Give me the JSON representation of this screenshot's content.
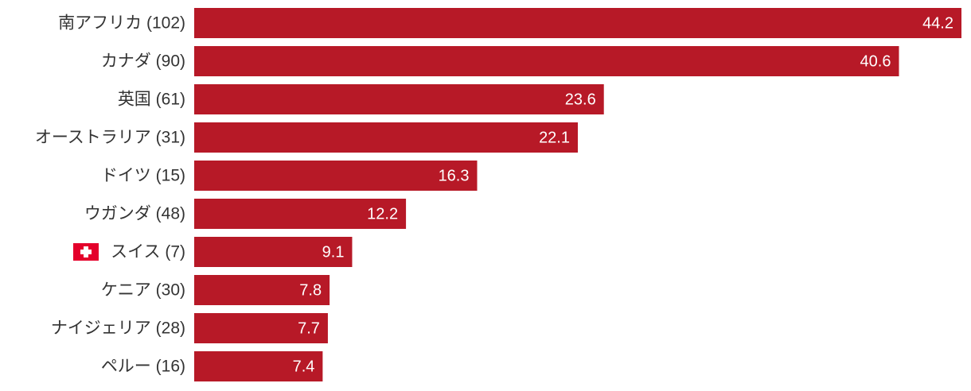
{
  "chart_data": {
    "type": "bar",
    "orientation": "horizontal",
    "categories": [
      "南アフリカ (102)",
      "カナダ (90)",
      "英国 (61)",
      "オーストラリア (31)",
      "ドイツ (15)",
      "ウガンダ (48)",
      "スイス (7)",
      "ケニア (30)",
      "ナイジェリア (28)",
      "ペルー (16)"
    ],
    "values": [
      44.2,
      40.6,
      23.6,
      22.1,
      16.3,
      12.2,
      9.1,
      7.8,
      7.7,
      7.4
    ],
    "color": "#b71927"
  }
}
